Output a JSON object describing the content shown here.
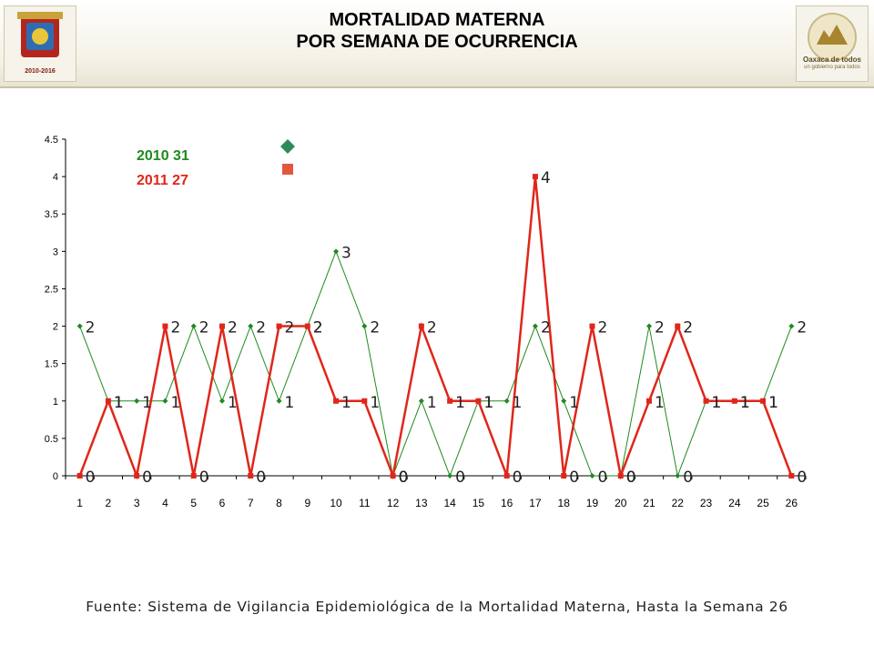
{
  "header": {
    "title_line1": "MORTALIDAD MATERNA",
    "title_line2": "POR SEMANA DE OCURRENCIA",
    "logo_left_text": "2010-2016",
    "logo_right_text": "Oaxaca de todos",
    "logo_right_subtext": "un gobierno para todos"
  },
  "colors": {
    "series_2010": "#1f8a1f",
    "series_2011": "#e0261a",
    "marker_2010": "#2e8b57",
    "marker_2011": "#e2583e"
  },
  "chart_data": {
    "type": "line",
    "categories": [
      "1",
      "2",
      "3",
      "4",
      "5",
      "6",
      "7",
      "8",
      "9",
      "10",
      "11",
      "12",
      "13",
      "14",
      "15",
      "16",
      "17",
      "18",
      "19",
      "20",
      "21",
      "22",
      "23",
      "24",
      "25",
      "26"
    ],
    "yticks": [
      "0",
      "0.5",
      "1",
      "1.5",
      "2",
      "2.5",
      "3",
      "3.5",
      "4",
      "4.5"
    ],
    "ylim": [
      0,
      4.5
    ],
    "legend_position": "top-left",
    "series": [
      {
        "name": "2010 31",
        "values": [
          2,
          1,
          1,
          1,
          2,
          1,
          2,
          1,
          2,
          3,
          2,
          0,
          1,
          0,
          1,
          1,
          2,
          1,
          0,
          0,
          2,
          0,
          1,
          1,
          1,
          2
        ]
      },
      {
        "name": "2011 27",
        "values": [
          0,
          1,
          0,
          2,
          0,
          2,
          0,
          2,
          2,
          1,
          1,
          0,
          2,
          1,
          1,
          0,
          4,
          0,
          2,
          0,
          1,
          2,
          1,
          1,
          1,
          0
        ]
      }
    ]
  },
  "source": "Fuente: Sistema de Vigilancia Epidemiológica de la Mortalidad Materna, Hasta la Semana 26"
}
